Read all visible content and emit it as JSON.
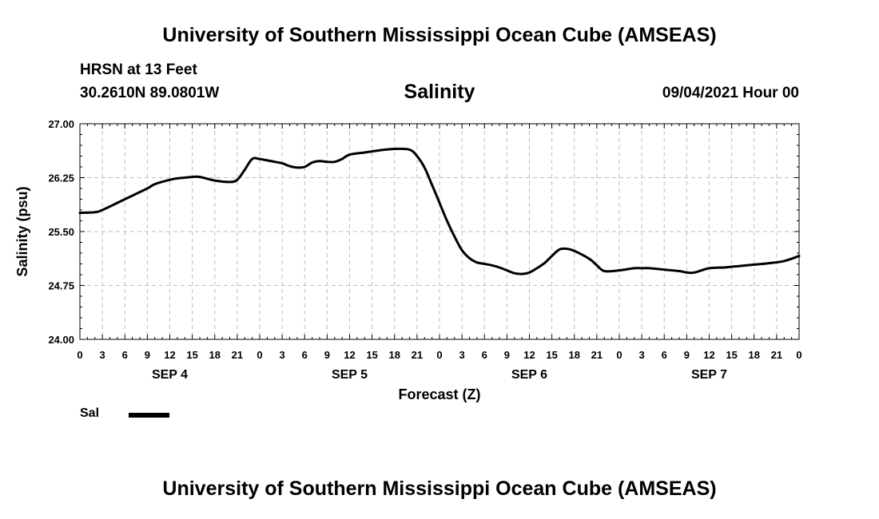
{
  "header": {
    "title": "University of Southern Mississippi Ocean Cube (AMSEAS)",
    "station": "HRSN at 13 Feet",
    "coordinates": "30.2610N  89.0801W",
    "variable": "Salinity",
    "datetime": "09/04/2021 Hour 00"
  },
  "footer": {
    "title": "University of Southern Mississippi Ocean Cube (AMSEAS)"
  },
  "legend": {
    "label": "Sal"
  },
  "chart_data": {
    "type": "line",
    "title": "Salinity",
    "xlabel": "Forecast (Z)",
    "ylabel": "Salinity (psu)",
    "xlim": [
      0,
      96
    ],
    "ylim": [
      24.0,
      27.0
    ],
    "yticks": [
      "24.00",
      "24.75",
      "25.50",
      "26.25",
      "27.00"
    ],
    "xtick_labels": [
      "0",
      "3",
      "6",
      "9",
      "12",
      "15",
      "18",
      "21",
      "0",
      "3",
      "6",
      "9",
      "12",
      "15",
      "18",
      "21",
      "0",
      "3",
      "6",
      "9",
      "12",
      "15",
      "18",
      "21",
      "0",
      "3",
      "6",
      "9",
      "12",
      "15",
      "18",
      "21",
      "0"
    ],
    "day_labels": [
      {
        "label": "SEP 4",
        "hour": 12
      },
      {
        "label": "SEP 5",
        "hour": 36
      },
      {
        "label": "SEP 6",
        "hour": 60
      },
      {
        "label": "SEP 7",
        "hour": 84
      }
    ],
    "grid": true,
    "series": [
      {
        "name": "Sal",
        "color": "#000000",
        "x": [
          0,
          2,
          3,
          6,
          9,
          10,
          12,
          13,
          14,
          15,
          16,
          18,
          20,
          21,
          22,
          23,
          24,
          26,
          27,
          28,
          29,
          30,
          31,
          32,
          33,
          34,
          35,
          36,
          38,
          40,
          42,
          44,
          45,
          46,
          47,
          48,
          49,
          50,
          51,
          52,
          53,
          54,
          55,
          56,
          57,
          58,
          59,
          60,
          61,
          62,
          63,
          64,
          65,
          66,
          68,
          69,
          70,
          72,
          74,
          75,
          76,
          78,
          80,
          81,
          82,
          84,
          86,
          87,
          88,
          90,
          92,
          94,
          96
        ],
        "y": [
          25.76,
          25.77,
          25.8,
          25.95,
          26.1,
          26.16,
          26.22,
          26.24,
          26.25,
          26.26,
          26.26,
          26.21,
          26.19,
          26.22,
          26.36,
          26.51,
          26.51,
          26.47,
          26.45,
          26.41,
          26.39,
          26.4,
          26.46,
          26.48,
          26.47,
          26.47,
          26.51,
          26.57,
          26.6,
          26.63,
          26.65,
          26.64,
          26.55,
          26.39,
          26.15,
          25.9,
          25.65,
          25.43,
          25.24,
          25.13,
          25.07,
          25.05,
          25.03,
          25.0,
          24.96,
          24.92,
          24.91,
          24.93,
          24.99,
          25.06,
          25.16,
          25.25,
          25.26,
          25.23,
          25.12,
          25.03,
          24.95,
          24.96,
          24.99,
          24.99,
          24.99,
          24.97,
          24.95,
          24.93,
          24.93,
          24.99,
          25.0,
          25.01,
          25.02,
          25.04,
          25.06,
          25.09,
          25.16
        ]
      }
    ]
  }
}
